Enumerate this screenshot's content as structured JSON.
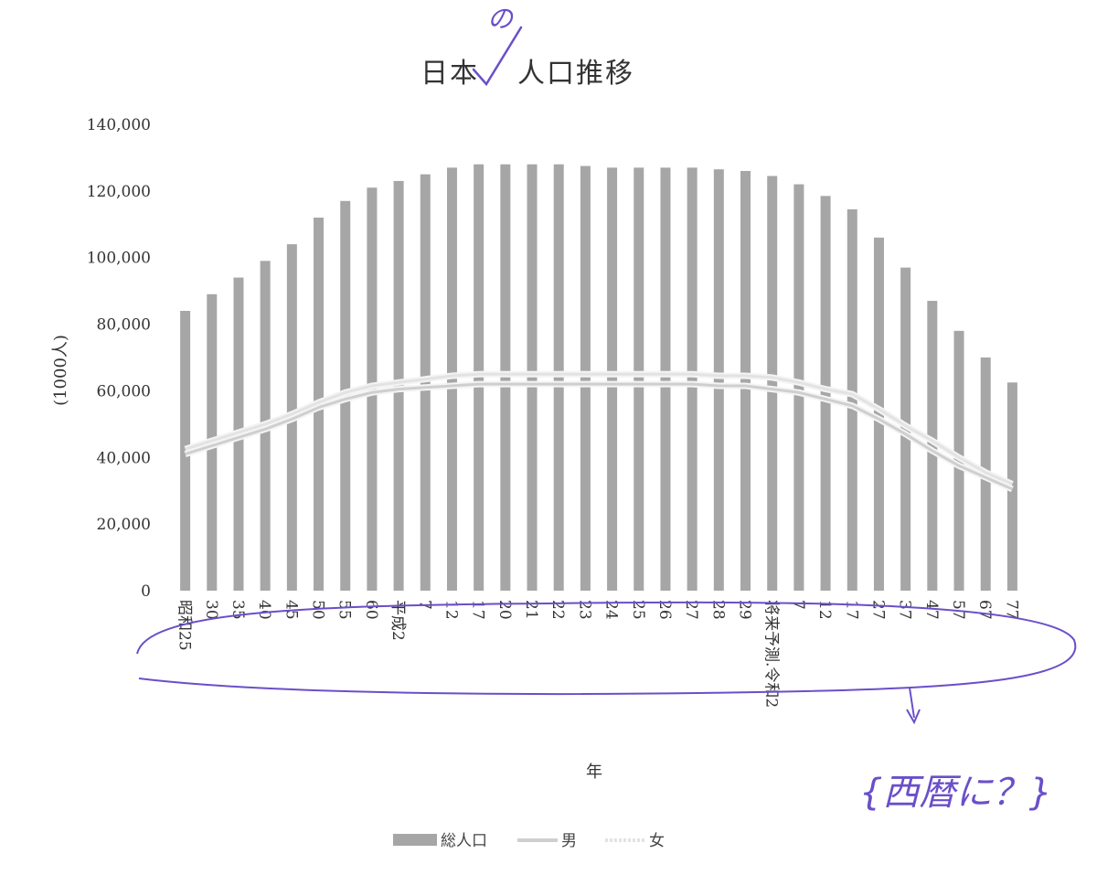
{
  "chart_data": {
    "type": "bar",
    "title_part1": "日本",
    "title_part2": "人口推移",
    "ylabel": "(1000人)",
    "xlabel": "年",
    "ylim": [
      0,
      140000
    ],
    "y_ticks": [
      "0",
      "20,000",
      "40,000",
      "60,000",
      "80,000",
      "100,000",
      "120,000",
      "140,000"
    ],
    "y_tick_values": [
      0,
      20000,
      40000,
      60000,
      80000,
      100000,
      120000,
      140000
    ],
    "categories": [
      "昭和25",
      "30",
      "35",
      "40",
      "45",
      "50",
      "55",
      "60",
      "平成2",
      "7",
      "12",
      "17",
      "20",
      "21",
      "22",
      "23",
      "24",
      "25",
      "26",
      "27",
      "28",
      "29",
      "将来予測.令和2",
      "7",
      "12",
      "17",
      "27",
      "37",
      "47",
      "57",
      "67",
      "77"
    ],
    "series": [
      {
        "name": "総人口",
        "kind": "bar",
        "color": "#a6a6a6",
        "values": [
          84000,
          89000,
          94000,
          99000,
          104000,
          112000,
          117000,
          121000,
          123000,
          125000,
          127000,
          128000,
          128000,
          128000,
          128000,
          127500,
          127000,
          127000,
          127000,
          127000,
          126500,
          126000,
          124500,
          122000,
          118500,
          114500,
          106000,
          97000,
          87000,
          78000,
          70000,
          62500
        ]
      },
      {
        "name": "男",
        "kind": "line",
        "color": "#cfcfcf",
        "values": [
          41000,
          43500,
          46000,
          48500,
          51500,
          55000,
          57500,
          59500,
          60500,
          61000,
          61500,
          62000,
          62000,
          62000,
          62000,
          62000,
          62000,
          62000,
          62000,
          62000,
          61500,
          61500,
          60500,
          59500,
          57500,
          55500,
          51500,
          47000,
          42000,
          37500,
          34000,
          30500
        ]
      },
      {
        "name": "女",
        "kind": "line",
        "color": "#e3e3e3",
        "values": [
          42500,
          45000,
          47500,
          50000,
          53000,
          56500,
          59500,
          61500,
          62500,
          63500,
          64500,
          65000,
          65000,
          65000,
          65000,
          65000,
          65000,
          65000,
          65000,
          65000,
          64500,
          64500,
          64000,
          62500,
          60500,
          59000,
          54500,
          49500,
          45000,
          40000,
          35500,
          32000
        ]
      }
    ]
  },
  "annotations": {
    "inserted_char": "の",
    "margin_note": "{西暦に？}"
  }
}
